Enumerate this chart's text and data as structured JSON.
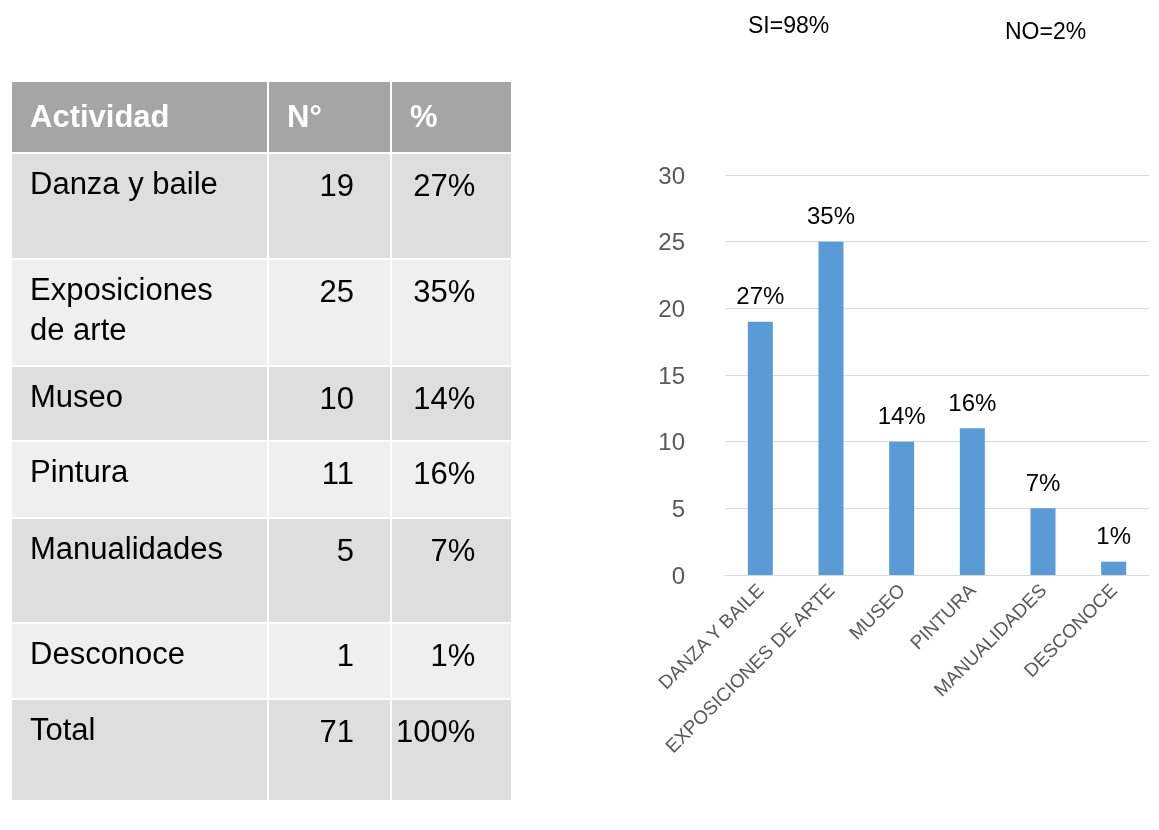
{
  "chart_data": [
    {
      "type": "other",
      "data_labels": true,
      "xlabel": "Actividad",
      "categories": [
        "Danza y baile",
        "Exposiciones de arte",
        "Museo",
        "Pintura",
        "Manualidades",
        "Desconoce",
        "Total"
      ],
      "series": [
        {
          "name": "N°",
          "values": [
            19,
            25,
            10,
            11,
            5,
            1,
            71
          ],
          "colors": [
            "#dedede",
            "#efefef",
            "#dedede",
            "#efefef",
            "#dedede",
            "#efefef",
            "#dedede"
          ]
        },
        {
          "name": "%",
          "values": [
            27,
            35,
            14,
            16,
            7,
            1,
            100
          ],
          "value_labels": [
            "27%",
            "35%",
            "14%",
            "16%",
            "7%",
            "1%",
            "100%"
          ],
          "colors": [
            "#dedede",
            "#efefef",
            "#dedede",
            "#efefef",
            "#dedede",
            "#efefef",
            "#dedede"
          ]
        }
      ]
    },
    {
      "type": "bar",
      "categories": [
        "DANZA Y BAILE",
        "EXPOSICIONES DE ARTE",
        "MUSEO",
        "PINTURA",
        "MANUALIDADES",
        "DESCONOCE"
      ],
      "values": [
        19,
        25,
        10,
        11,
        5,
        1
      ],
      "color": "#5b9bd5",
      "ylim": [
        0,
        30
      ],
      "yticks": [
        0,
        5,
        10,
        15,
        20,
        25,
        30
      ],
      "grid": "y",
      "annotations": [
        "SI=98%",
        "NO=2%",
        {
          "text": "27%",
          "x": "DANZA Y BAILE",
          "y": 19
        },
        {
          "text": "35%",
          "x": "EXPOSICIONES DE ARTE",
          "y": 25
        },
        {
          "text": "14%",
          "x": "MUSEO",
          "y": 10
        },
        {
          "text": "16%",
          "x": "PINTURA",
          "y": 11
        },
        {
          "text": "7%",
          "x": "MANUALIDADES",
          "y": 5
        },
        {
          "text": "1%",
          "x": "DESCONOCE",
          "y": 1
        }
      ]
    }
  ]
}
